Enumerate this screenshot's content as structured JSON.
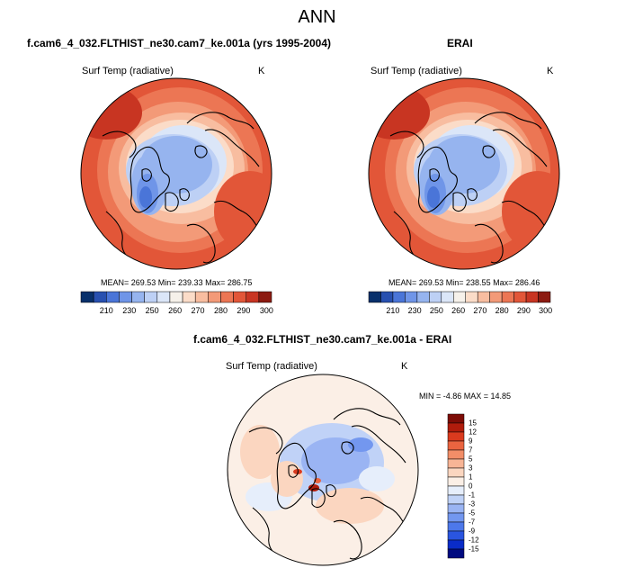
{
  "main_title": "ANN",
  "panels": [
    {
      "title": "f.cam6_4_032.FLTHIST_ne30.cam7_ke.001a (yrs 1995-2004)",
      "variable": "Surf Temp (radiative)",
      "units": "K",
      "stats": "MEAN= 269.53  Min= 239.33  Max= 286.75",
      "colorbar_ticks": [
        "210",
        "230",
        "250",
        "260",
        "270",
        "280",
        "290",
        "300"
      ]
    },
    {
      "title": "ERAI",
      "variable": "Surf Temp (radiative)",
      "units": "K",
      "stats": "MEAN= 269.53  Min= 238.55  Max= 286.46",
      "colorbar_ticks": [
        "210",
        "230",
        "250",
        "260",
        "270",
        "280",
        "290",
        "300"
      ]
    },
    {
      "title": "f.cam6_4_032.FLTHIST_ne30.cam7_ke.001a - ERAI",
      "variable": "Surf Temp (radiative)",
      "units": "K",
      "stats": "MIN =  -4.86 MAX =  14.85",
      "colorbar_ticks": [
        "15",
        "12",
        "9",
        "7",
        "5",
        "3",
        "1",
        "0",
        "-1",
        "-3",
        "-5",
        "-7",
        "-9",
        "-12",
        "-15"
      ]
    }
  ],
  "colors": {
    "abs_scale": [
      "#08306b",
      "#2850b0",
      "#4a75d8",
      "#6f95e8",
      "#96b4ef",
      "#bdd0f5",
      "#dbe6f8",
      "#f6f1ea",
      "#fbdcc8",
      "#f8bda0",
      "#f39a78",
      "#ec7654",
      "#e25638",
      "#c83522",
      "#8c1a10"
    ],
    "diff_scale": [
      "#000a80",
      "#0a2cc8",
      "#2a55e0",
      "#4d78ea",
      "#7397ef",
      "#9ab4f3",
      "#c0d2f7",
      "#e6eefb",
      "#fbefe6",
      "#fbd6c0",
      "#f8b596",
      "#f28e68",
      "#ea6440",
      "#da3a1e",
      "#b01c0c",
      "#7d0c06"
    ],
    "ocean_warm": "#ef7a58",
    "ice_cold": "#a9c4f2",
    "land_outline": "#000000"
  }
}
